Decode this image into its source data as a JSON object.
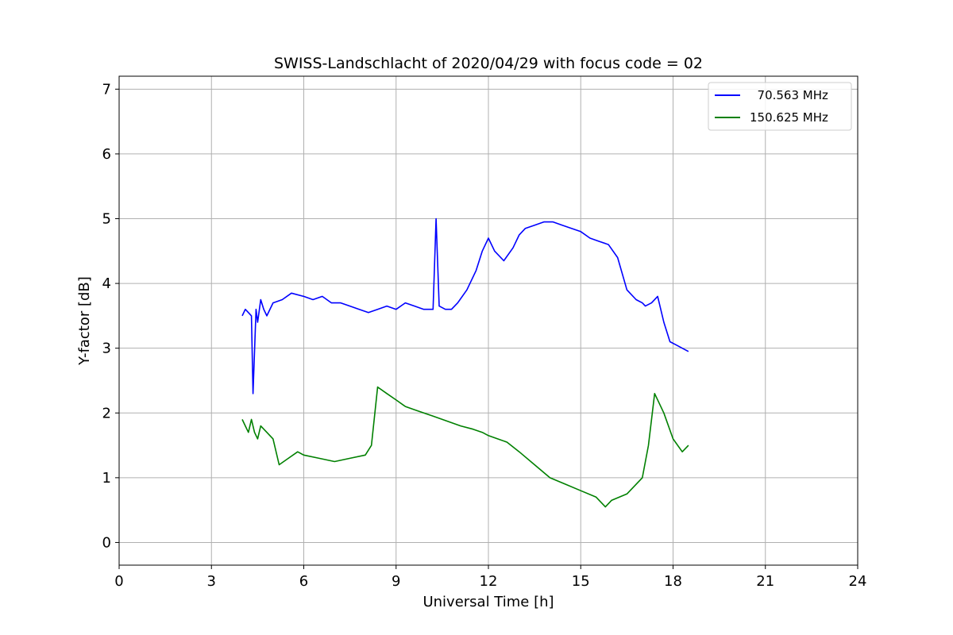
{
  "chart_data": {
    "type": "line",
    "title": "SWISS-Landschlacht of 2020/04/29 with focus code = 02",
    "xlabel": "Universal Time [h]",
    "ylabel": "Y-factor [dB]",
    "xlim": [
      0,
      24
    ],
    "ylim": [
      -0.35,
      7.2
    ],
    "xticks": [
      0,
      3,
      6,
      9,
      12,
      15,
      18,
      21,
      24
    ],
    "yticks": [
      0,
      1,
      2,
      3,
      4,
      5,
      6,
      7
    ],
    "grid": true,
    "legend_position": "top-right",
    "series": [
      {
        "name": "  70.563 MHz",
        "color": "#0000ff",
        "x": [
          4.0,
          4.1,
          4.2,
          4.3,
          4.35,
          4.45,
          4.5,
          4.6,
          4.7,
          4.8,
          5.0,
          5.3,
          5.6,
          6.0,
          6.3,
          6.6,
          6.9,
          7.2,
          7.5,
          7.8,
          8.1,
          8.4,
          8.7,
          9.0,
          9.3,
          9.6,
          9.9,
          10.2,
          10.3,
          10.4,
          10.6,
          10.8,
          11.0,
          11.3,
          11.6,
          11.8,
          12.0,
          12.2,
          12.5,
          12.8,
          13.0,
          13.2,
          13.5,
          13.8,
          14.1,
          14.4,
          14.7,
          15.0,
          15.3,
          15.6,
          15.9,
          16.2,
          16.5,
          16.8,
          17.0,
          17.1,
          17.3,
          17.5,
          17.7,
          17.9,
          18.1,
          18.3,
          18.5
        ],
        "y": [
          3.5,
          3.6,
          3.55,
          3.5,
          2.3,
          3.6,
          3.4,
          3.75,
          3.6,
          3.5,
          3.7,
          3.75,
          3.85,
          3.8,
          3.75,
          3.8,
          3.7,
          3.7,
          3.65,
          3.6,
          3.55,
          3.6,
          3.65,
          3.6,
          3.7,
          3.65,
          3.6,
          3.6,
          5.0,
          3.65,
          3.6,
          3.6,
          3.7,
          3.9,
          4.2,
          4.5,
          4.7,
          4.5,
          4.35,
          4.55,
          4.75,
          4.85,
          4.9,
          4.95,
          4.95,
          4.9,
          4.85,
          4.8,
          4.7,
          4.65,
          4.6,
          4.4,
          3.9,
          3.75,
          3.7,
          3.65,
          3.7,
          3.8,
          3.4,
          3.1,
          3.05,
          3.0,
          2.95
        ]
      },
      {
        "name": "150.625 MHz",
        "color": "#008000",
        "x": [
          4.0,
          4.1,
          4.2,
          4.3,
          4.4,
          4.5,
          4.6,
          4.8,
          5.0,
          5.2,
          5.5,
          5.8,
          6.0,
          6.5,
          7.0,
          7.5,
          8.0,
          8.2,
          8.4,
          8.7,
          9.0,
          9.3,
          9.6,
          9.9,
          10.2,
          10.5,
          10.8,
          11.1,
          11.5,
          11.8,
          12.0,
          12.3,
          12.6,
          13.0,
          13.5,
          14.0,
          14.5,
          15.0,
          15.5,
          15.8,
          16.0,
          16.5,
          17.0,
          17.2,
          17.4,
          17.7,
          18.0,
          18.3,
          18.5
        ],
        "y": [
          1.9,
          1.8,
          1.7,
          1.9,
          1.7,
          1.6,
          1.8,
          1.7,
          1.6,
          1.2,
          1.3,
          1.4,
          1.35,
          1.3,
          1.25,
          1.3,
          1.35,
          1.5,
          2.4,
          2.3,
          2.2,
          2.1,
          2.05,
          2.0,
          1.95,
          1.9,
          1.85,
          1.8,
          1.75,
          1.7,
          1.65,
          1.6,
          1.55,
          1.4,
          1.2,
          1.0,
          0.9,
          0.8,
          0.7,
          0.55,
          0.65,
          0.75,
          1.0,
          1.5,
          2.3,
          2.0,
          1.6,
          1.4,
          1.5
        ]
      }
    ]
  }
}
